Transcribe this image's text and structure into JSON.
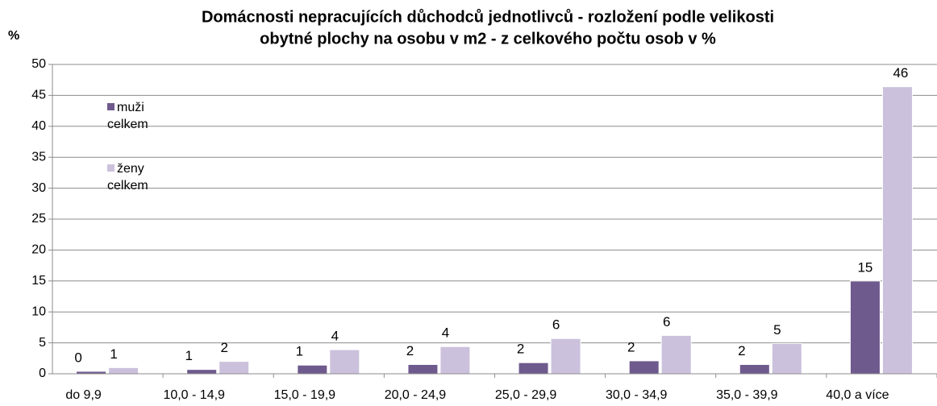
{
  "chart_data": {
    "type": "bar",
    "title": [
      "Domácnosti nepracujících důchodců jednotlivců - rozložení podle velikosti",
      "obytné plochy na osobu v m2 - z celkového počtu osob v %"
    ],
    "y_label": "%",
    "categories": [
      "do 9,9",
      "10,0 - 14,9",
      "15,0 - 19,9",
      "20,0 - 24,9",
      "25,0 - 29,9",
      "30,0 - 34,9",
      "35,0 - 39,9",
      "40,0 a více"
    ],
    "series": [
      {
        "name": "muži celkem",
        "color": "#6f5a8e",
        "values": [
          0.4,
          0.7,
          1.4,
          1.5,
          1.8,
          2.1,
          1.5,
          15.0
        ],
        "value_labels": [
          "0",
          "1",
          "1",
          "2",
          "2",
          "2",
          "2",
          "15"
        ]
      },
      {
        "name": "ženy celkem",
        "color": "#cbc1dc",
        "values": [
          1.0,
          2.0,
          3.9,
          4.4,
          5.7,
          6.2,
          4.9,
          46.4
        ],
        "value_labels": [
          "1",
          "2",
          "4",
          "4",
          "6",
          "6",
          "5",
          "46"
        ]
      }
    ],
    "ylim": [
      0,
      50
    ],
    "yticks": [
      0,
      5,
      10,
      15,
      20,
      25,
      30,
      35,
      40,
      45,
      50
    ],
    "grid": true,
    "legend": "upper left"
  }
}
